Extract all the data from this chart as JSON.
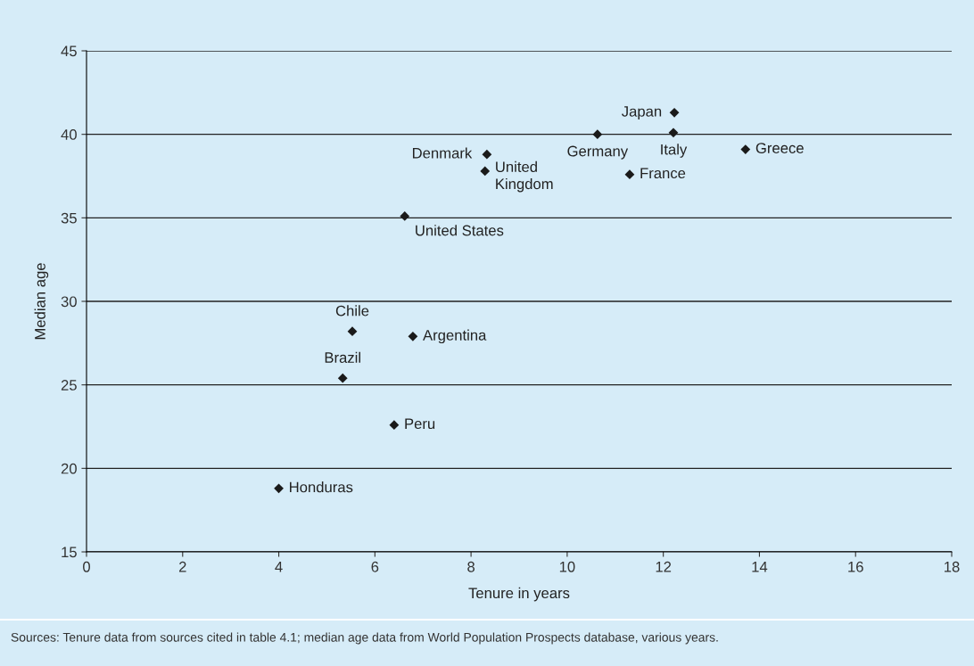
{
  "chart_data": {
    "type": "scatter",
    "xlabel": "Tenure in years",
    "ylabel": "Median age",
    "x": [
      5.53,
      6.79,
      5.33,
      6.4,
      4.0,
      8.33,
      8.29,
      6.62,
      12.23,
      10.63,
      12.21,
      11.3,
      13.71
    ],
    "series": [
      {
        "color": "#1a1a1a",
        "values": [
          28.2,
          27.9,
          25.4,
          22.6,
          18.8,
          38.8,
          37.8,
          35.1,
          41.3,
          40.0,
          40.1,
          37.6,
          39.1
        ]
      }
    ],
    "annotations": [
      {
        "text": "Chile",
        "x": 5.53,
        "y": 28.2
      },
      {
        "text": "Argentina",
        "x": 6.79,
        "y": 27.9
      },
      {
        "text": "Brazil",
        "x": 5.33,
        "y": 25.4
      },
      {
        "text": "Peru",
        "x": 6.4,
        "y": 22.6
      },
      {
        "text": "Honduras",
        "x": 4.0,
        "y": 18.8
      },
      {
        "text": "Denmark",
        "x": 8.33,
        "y": 38.8
      },
      {
        "text": "United\nKingdom",
        "x": 8.29,
        "y": 37.8
      },
      {
        "text": "United States",
        "x": 6.62,
        "y": 35.1
      },
      {
        "text": "Japan",
        "x": 12.23,
        "y": 41.3
      },
      {
        "text": "Germany",
        "x": 10.63,
        "y": 40.0
      },
      {
        "text": "Italy",
        "x": 12.21,
        "y": 40.1
      },
      {
        "text": "France",
        "x": 11.3,
        "y": 37.6
      },
      {
        "text": "Greece",
        "x": 13.71,
        "y": 39.1
      },
      "Sources: Tenure data from sources cited in table 4.1; median age data from World Population Prospects database, various years."
    ],
    "xlim": [
      0,
      18
    ],
    "xticks": [
      0,
      2,
      4,
      6,
      8,
      10,
      12,
      14,
      16,
      18
    ],
    "ylim": [
      15,
      45
    ],
    "yticks": [
      15,
      20,
      25,
      30,
      35,
      40,
      45
    ],
    "grid": "y",
    "marker": "diamond",
    "legend": false
  }
}
